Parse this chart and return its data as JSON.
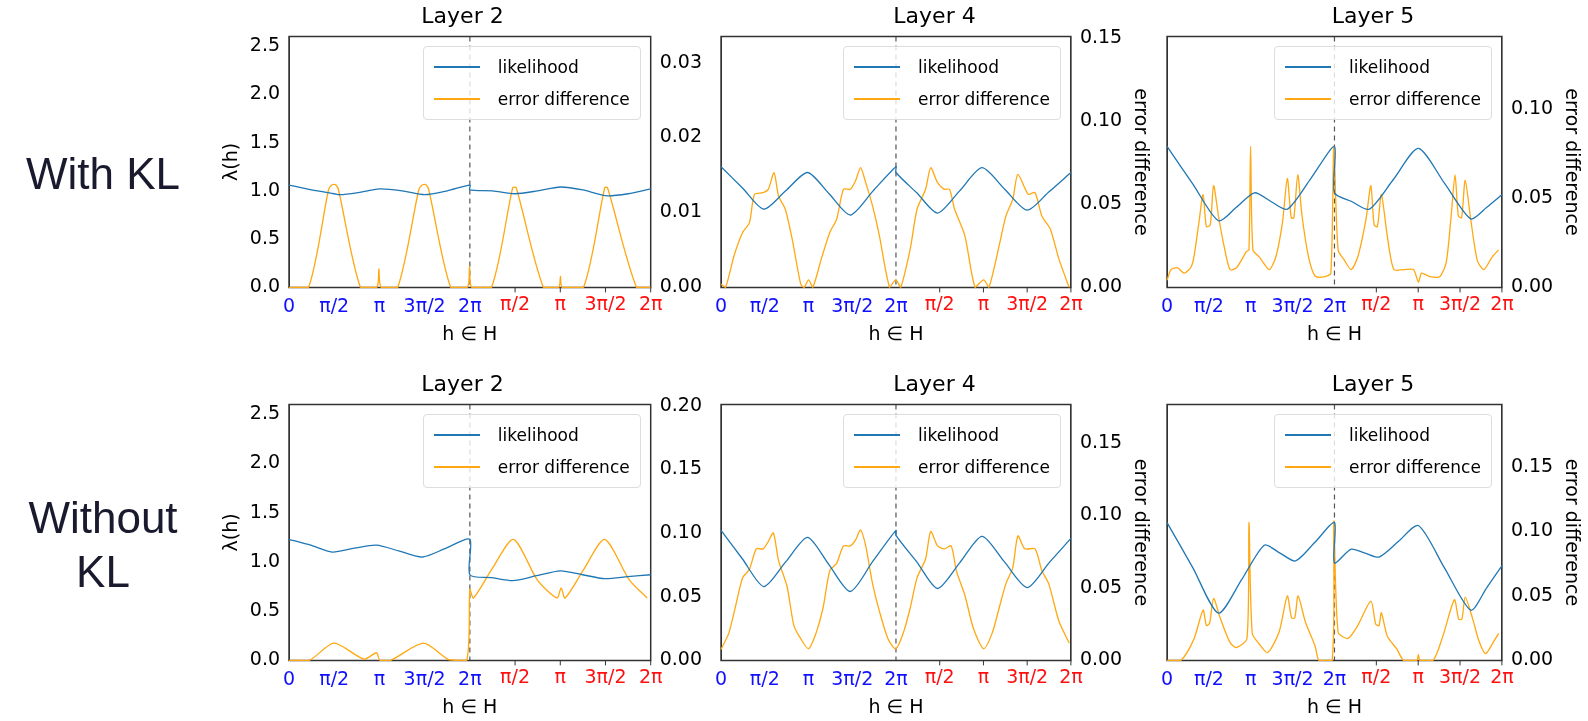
{
  "chart_data": [
    {
      "type": "line",
      "title": "Layer 2",
      "xlabel": "h ∈ H",
      "ylabel": "λ(h)",
      "annotations": [
        "With KL"
      ],
      "legend": "top right",
      "xlim": [
        0,
        12.566
      ],
      "xticks": [
        {
          "value": 0,
          "label": "0"
        },
        {
          "value": 1.571,
          "label": "π/2"
        },
        {
          "value": 3.142,
          "label": "π"
        },
        {
          "value": 4.712,
          "label": "3π/2"
        },
        {
          "value": 6.283,
          "label": "2π"
        }
      ],
      "x2lim": [
        -6.283,
        6.283
      ],
      "x2ticks": [
        {
          "value": 1.571,
          "label": "π/2"
        },
        {
          "value": 3.142,
          "label": "π"
        },
        {
          "value": 4.712,
          "label": "3π/2"
        },
        {
          "value": 6.283,
          "label": "2π"
        }
      ],
      "ylim": [
        0,
        2.6
      ],
      "yticks": [
        {
          "value": 0,
          "label": "0.0"
        },
        0.5,
        {
          "value": 1,
          "label": "1.0"
        },
        1.5,
        {
          "value": 2,
          "label": "2.0"
        },
        2.5
      ],
      "y2lim": [
        0,
        0.0335
      ],
      "y2ticks": [
        {
          "value": 0,
          "label": "0.00"
        },
        0.01,
        0.02,
        0.03
      ],
      "ref_lines": [
        {
          "axis": "x",
          "value": 6.283,
          "color": "#555555",
          "line_style": "dashed"
        }
      ],
      "series": [
        {
          "name": "likelihood",
          "color": "#1f77b4",
          "x": [
            0,
            0.785,
            1.571,
            1.767,
            2.356,
            3.142,
            3.927,
            4.712,
            5.498,
            6.283,
            6.283,
            7.069,
            7.854,
            8.639,
            9.425,
            10.21,
            10.996,
            11.781,
            12.566
          ],
          "values": [
            1.06,
            1.01,
            0.97,
            0.96,
            0.98,
            1.02,
            1.0,
            0.96,
            1.0,
            1.06,
            1.01,
            1.0,
            0.97,
            1.0,
            1.04,
            1.01,
            0.95,
            0.97,
            1.02
          ]
        },
        {
          "name": "error difference",
          "color": "#ffa812",
          "axis": "y2",
          "x": [
            0,
            0.676,
            1.377,
            1.5,
            1.623,
            1.72,
            2.484,
            3.05,
            3.123,
            3.197,
            3.775,
            4.513,
            4.636,
            4.759,
            4.857,
            5.619,
            6.197,
            6.271,
            6.345,
            7.033,
            7.771,
            7.894,
            8.841,
            9.37,
            9.431,
            9.493,
            10.23,
            10.968,
            11.067,
            12.075,
            12.566
          ],
          "values": [
            0,
            0,
            0.0131,
            0.0137,
            0.0137,
            0.013,
            0,
            0,
            0.0025,
            0,
            0,
            0.0131,
            0.0137,
            0.0137,
            0.013,
            0,
            0,
            0.0028,
            0,
            0,
            0.0133,
            0.0133,
            0,
            0,
            0.0015,
            0,
            0,
            0.0133,
            0.0133,
            0,
            0
          ]
        }
      ]
    },
    {
      "type": "line",
      "title": "Layer 4",
      "xlabel": "h ∈ H",
      "y2label": "error difference",
      "legend": "top right",
      "tick_labels": [
        "x",
        "y2"
      ],
      "xlim": [
        0,
        12.566
      ],
      "xticks": [
        {
          "value": 0,
          "label": "0"
        },
        {
          "value": 1.571,
          "label": "π/2"
        },
        {
          "value": 3.142,
          "label": "π"
        },
        {
          "value": 4.712,
          "label": "3π/2"
        },
        {
          "value": 6.283,
          "label": "2π"
        }
      ],
      "x2lim": [
        -6.283,
        6.283
      ],
      "x2ticks": [
        {
          "value": 1.571,
          "label": "π/2"
        },
        {
          "value": 3.142,
          "label": "π"
        },
        {
          "value": 4.712,
          "label": "3π/2"
        },
        {
          "value": 6.283,
          "label": "2π"
        }
      ],
      "ylim": [
        0,
        2.6
      ],
      "y2lim": [
        0,
        0.151
      ],
      "y2ticks": [
        {
          "value": 0,
          "label": "0.00"
        },
        0.05,
        {
          "value": 0.1,
          "label": "0.10"
        },
        0.15
      ],
      "ref_lines": [
        {
          "axis": "x",
          "value": 6.283,
          "color": "#555555",
          "line_style": "dashed"
        }
      ],
      "series": [
        {
          "name": "likelihood",
          "color": "#1f77b4",
          "x": [
            0,
            0.77,
            1.536,
            2.32,
            3.108,
            3.88,
            4.643,
            5.46,
            6.283,
            6.283,
            7.03,
            7.776,
            8.57,
            9.373,
            10.18,
            10.994,
            11.78,
            12.566
          ],
          "values": [
            1.25,
            1.03,
            0.81,
            1.0,
            1.19,
            0.97,
            0.75,
            1.0,
            1.25,
            1.19,
            0.98,
            0.77,
            1.0,
            1.24,
            1.02,
            0.8,
            0.99,
            1.19
          ]
        },
        {
          "name": "error difference",
          "color": "#ffa812",
          "axis": "y2",
          "x": [
            0,
            0.16,
            0.467,
            0.774,
            1.02,
            1.204,
            1.511,
            1.695,
            1.904,
            2.064,
            2.309,
            2.555,
            2.862,
            2.985,
            3.145,
            3.292,
            3.599,
            3.906,
            4.152,
            4.398,
            4.643,
            4.828,
            5.012,
            5.196,
            5.442,
            5.688,
            6.056,
            6.277,
            6.449,
            6.793,
            7.039,
            7.346,
            7.53,
            7.776,
            8.021,
            8.206,
            8.39,
            8.758,
            9.127,
            9.434,
            9.618,
            9.987,
            10.233,
            10.478,
            10.663,
            11.031,
            11.277,
            11.522,
            11.829,
            12.137,
            12.505
          ],
          "values": [
            0.002,
            0,
            0.019,
            0.033,
            0.039,
            0.056,
            0.057,
            0.059,
            0.069,
            0.055,
            0.047,
            0.029,
            0.002,
            0,
            0.0045,
            0,
            0.017,
            0.033,
            0.041,
            0.059,
            0.059,
            0.064,
            0.072,
            0.063,
            0.049,
            0.031,
            0,
            0.0045,
            0,
            0.023,
            0.047,
            0.059,
            0.072,
            0.063,
            0.059,
            0.059,
            0.047,
            0.031,
            0,
            0.0045,
            0,
            0.025,
            0.043,
            0.053,
            0.068,
            0.056,
            0.057,
            0.043,
            0.035,
            0.017,
            0
          ]
        }
      ]
    },
    {
      "type": "line",
      "title": "Layer 5",
      "xlabel": "h ∈ H",
      "y2label": "error difference",
      "legend": "top right",
      "tick_labels": [
        "x",
        "y2"
      ],
      "xlim": [
        0,
        12.566
      ],
      "xticks": [
        {
          "value": 0,
          "label": "0"
        },
        {
          "value": 1.571,
          "label": "π/2"
        },
        {
          "value": 3.142,
          "label": "π"
        },
        {
          "value": 4.712,
          "label": "3π/2"
        },
        {
          "value": 6.283,
          "label": "2π"
        }
      ],
      "x2lim": [
        -6.283,
        6.283
      ],
      "x2ticks": [
        {
          "value": 1.571,
          "label": "π/2"
        },
        {
          "value": 3.142,
          "label": "π"
        },
        {
          "value": 4.712,
          "label": "3π/2"
        },
        {
          "value": 6.283,
          "label": "2π"
        }
      ],
      "ylim": [
        0,
        2.6
      ],
      "y2lim": [
        0,
        0.1406
      ],
      "y2ticks": [
        {
          "value": 0,
          "label": "0.00"
        },
        0.05,
        {
          "value": 0.1,
          "label": "0.10"
        }
      ],
      "ref_lines": [
        {
          "axis": "x",
          "value": 6.283,
          "color": "#555555",
          "line_style": "dashed"
        }
      ],
      "series": [
        {
          "name": "likelihood",
          "color": "#1f77b4",
          "x": [
            0,
            0.97,
            1.93,
            2.6,
            3.283,
            3.9,
            4.513,
            5.4,
            6.283,
            6.283,
            6.93,
            7.587,
            8.5,
            9.431,
            10.41,
            11.398,
            12.0,
            12.566
          ],
          "values": [
            1.46,
            1.07,
            0.69,
            0.83,
            0.98,
            0.89,
            0.81,
            1.13,
            1.46,
            0.98,
            0.89,
            0.81,
            1.12,
            1.44,
            1.08,
            0.71,
            0.83,
            0.96
          ]
        },
        {
          "name": "error difference",
          "color": "#ffa812",
          "axis": "y2",
          "x": [
            0,
            0.148,
            0.394,
            0.639,
            0.885,
            1.008,
            1.193,
            1.353,
            1.476,
            1.623,
            1.746,
            1.93,
            2.115,
            2.361,
            2.607,
            2.976,
            3.074,
            3.135,
            3.222,
            3.467,
            3.836,
            4.082,
            4.328,
            4.513,
            4.66,
            4.759,
            4.906,
            5.066,
            5.312,
            5.558,
            5.927,
            6.148,
            6.259,
            6.419,
            6.665,
            6.91,
            7.156,
            7.464,
            7.648,
            7.771,
            7.894,
            8.042,
            8.263,
            8.509,
            8.878,
            9.247,
            9.431,
            9.554,
            9.861,
            10.23,
            10.476,
            10.661,
            10.808,
            10.931,
            11.054,
            11.189,
            11.398,
            11.644,
            11.89,
            12.198,
            12.443
          ],
          "values": [
            0.004,
            0.01,
            0.011,
            0.008,
            0.011,
            0.017,
            0.036,
            0.052,
            0.034,
            0.035,
            0.057,
            0.04,
            0.025,
            0.01,
            0.011,
            0.02,
            0.021,
            0.079,
            0.021,
            0.017,
            0.01,
            0.017,
            0.036,
            0.061,
            0.039,
            0.039,
            0.063,
            0.04,
            0.017,
            0.0064,
            0.006,
            0.008,
            0.079,
            0.021,
            0.015,
            0.01,
            0.017,
            0.038,
            0.057,
            0.035,
            0.034,
            0.052,
            0.029,
            0.01,
            0.01,
            0.01,
            0.003,
            0.008,
            0.006,
            0.006,
            0.014,
            0.04,
            0.063,
            0.04,
            0.039,
            0.06,
            0.038,
            0.015,
            0.01,
            0.017,
            0.021
          ]
        }
      ]
    },
    {
      "type": "line",
      "title": "Layer 2",
      "xlabel": "h ∈ H",
      "ylabel": "λ(h)",
      "annotations": [
        "Without KL"
      ],
      "legend": "top right",
      "xlim": [
        0,
        12.566
      ],
      "xticks": [
        {
          "value": 0,
          "label": "0"
        },
        {
          "value": 1.571,
          "label": "π/2"
        },
        {
          "value": 3.142,
          "label": "π"
        },
        {
          "value": 4.712,
          "label": "3π/2"
        },
        {
          "value": 6.283,
          "label": "2π"
        }
      ],
      "x2lim": [
        -6.283,
        6.283
      ],
      "x2ticks": [
        {
          "value": 1.571,
          "label": "π/2"
        },
        {
          "value": 3.142,
          "label": "π"
        },
        {
          "value": 4.712,
          "label": "3π/2"
        },
        {
          "value": 6.283,
          "label": "2π"
        }
      ],
      "ylim": [
        0,
        2.6
      ],
      "yticks": [
        {
          "value": 0,
          "label": "0.0"
        },
        0.5,
        {
          "value": 1,
          "label": "1.0"
        },
        1.5,
        {
          "value": 2,
          "label": "2.0"
        },
        2.5
      ],
      "y2lim": [
        0,
        0.201
      ],
      "y2ticks": [
        {
          "value": 0,
          "label": "0.00"
        },
        0.05,
        {
          "value": 0.1,
          "label": "0.10"
        },
        0.15,
        {
          "value": 0.2,
          "label": "0.20"
        }
      ],
      "ref_lines": [
        {
          "axis": "x",
          "value": 6.283,
          "color": "#555555",
          "line_style": "dashed"
        }
      ],
      "series": [
        {
          "name": "likelihood",
          "color": "#1f77b4",
          "x": [
            0,
            0.75,
            1.5,
            2.27,
            3.037,
            3.84,
            4.636,
            5.46,
            6.283,
            6.283,
            7.03,
            7.771,
            8.6,
            9.431,
            10.2,
            10.968,
            11.77,
            12.566
          ],
          "values": [
            1.23,
            1.17,
            1.1,
            1.14,
            1.17,
            1.11,
            1.05,
            1.14,
            1.23,
            0.87,
            0.84,
            0.81,
            0.86,
            0.91,
            0.87,
            0.83,
            0.85,
            0.87
          ]
        },
        {
          "name": "error difference",
          "color": "#ffa812",
          "axis": "y2",
          "x": [
            0,
            0.701,
            1.562,
            2.607,
            3.037,
            3.16,
            3.529,
            4.672,
            5.558,
            6.173,
            6.283,
            6.406,
            7.033,
            7.796,
            8.632,
            9.308,
            9.456,
            9.591,
            10.23,
            10.968,
            11.829,
            12.443
          ],
          "values": [
            0,
            0,
            0.0135,
            0.001,
            0.006,
            0,
            0,
            0.0135,
            0.0005,
            0,
            0.056,
            0.049,
            0.071,
            0.095,
            0.063,
            0.049,
            0.057,
            0.049,
            0.071,
            0.095,
            0.063,
            0.049
          ]
        }
      ]
    },
    {
      "type": "line",
      "title": "Layer 4",
      "xlabel": "h ∈ H",
      "y2label": "error difference",
      "legend": "top right",
      "tick_labels": [
        "x",
        "y2"
      ],
      "xlim": [
        0,
        12.566
      ],
      "xticks": [
        {
          "value": 0,
          "label": "0"
        },
        {
          "value": 1.571,
          "label": "π/2"
        },
        {
          "value": 3.142,
          "label": "π"
        },
        {
          "value": 4.712,
          "label": "3π/2"
        },
        {
          "value": 6.283,
          "label": "2π"
        }
      ],
      "x2lim": [
        -6.283,
        6.283
      ],
      "x2ticks": [
        {
          "value": 1.571,
          "label": "π/2"
        },
        {
          "value": 3.142,
          "label": "π"
        },
        {
          "value": 4.712,
          "label": "3π/2"
        },
        {
          "value": 6.283,
          "label": "2π"
        }
      ],
      "ylim": [
        0,
        2.6
      ],
      "y2lim": [
        0,
        0.1767
      ],
      "y2ticks": [
        {
          "value": 0,
          "label": "0.00"
        },
        0.05,
        {
          "value": 0.1,
          "label": "0.10"
        },
        0.15
      ],
      "ref_lines": [
        {
          "axis": "x",
          "value": 6.283,
          "color": "#555555",
          "line_style": "dashed"
        }
      ],
      "series": [
        {
          "name": "likelihood",
          "color": "#1f77b4",
          "x": [
            0,
            0.77,
            1.536,
            2.32,
            3.108,
            3.88,
            4.643,
            5.46,
            6.283,
            6.283,
            7.03,
            7.776,
            8.57,
            9.373,
            10.18,
            10.994,
            11.78,
            12.566
          ],
          "values": [
            1.32,
            1.03,
            0.75,
            1.0,
            1.25,
            0.97,
            0.7,
            1.01,
            1.32,
            1.27,
            1.0,
            0.73,
            0.99,
            1.26,
            1.0,
            0.74,
            0.99,
            1.24
          ]
        },
        {
          "name": "error difference",
          "color": "#ffa812",
          "axis": "y2",
          "x": [
            0,
            0.283,
            0.528,
            0.774,
            1.02,
            1.265,
            1.511,
            1.695,
            1.879,
            2.064,
            2.371,
            2.617,
            2.862,
            3.145,
            3.415,
            3.661,
            3.906,
            4.152,
            4.398,
            4.643,
            4.828,
            5.012,
            5.196,
            5.442,
            5.688,
            5.995,
            6.277,
            6.547,
            6.793,
            7.039,
            7.346,
            7.53,
            7.776,
            8.021,
            8.267,
            8.451,
            8.758,
            9.066,
            9.434,
            9.741,
            9.987,
            10.233,
            10.478,
            10.663,
            10.908,
            11.277,
            11.522,
            11.768,
            12.137,
            12.505
          ],
          "values": [
            0.0076,
            0.019,
            0.038,
            0.057,
            0.063,
            0.077,
            0.077,
            0.082,
            0.088,
            0.069,
            0.051,
            0.024,
            0.015,
            0.008,
            0.019,
            0.036,
            0.062,
            0.067,
            0.079,
            0.079,
            0.083,
            0.09,
            0.079,
            0.053,
            0.034,
            0.015,
            0.008,
            0.019,
            0.036,
            0.057,
            0.07,
            0.089,
            0.079,
            0.077,
            0.079,
            0.062,
            0.045,
            0.022,
            0.008,
            0.019,
            0.036,
            0.053,
            0.064,
            0.086,
            0.077,
            0.077,
            0.062,
            0.053,
            0.027,
            0.012
          ]
        }
      ]
    },
    {
      "type": "line",
      "title": "Layer 5",
      "xlabel": "h ∈ H",
      "y2label": "error difference",
      "legend": "top right",
      "tick_labels": [
        "x",
        "y2"
      ],
      "xlim": [
        0,
        12.566
      ],
      "xticks": [
        {
          "value": 0,
          "label": "0"
        },
        {
          "value": 1.571,
          "label": "π/2"
        },
        {
          "value": 3.142,
          "label": "π"
        },
        {
          "value": 4.712,
          "label": "3π/2"
        },
        {
          "value": 6.283,
          "label": "2π"
        }
      ],
      "x2lim": [
        -6.283,
        6.283
      ],
      "x2ticks": [
        {
          "value": 1.571,
          "label": "π/2"
        },
        {
          "value": 3.142,
          "label": "π"
        },
        {
          "value": 4.712,
          "label": "3π/2"
        },
        {
          "value": 6.283,
          "label": "2π"
        }
      ],
      "ylim": [
        0,
        2.6
      ],
      "y2lim": [
        0,
        0.1985
      ],
      "y2ticks": [
        {
          "value": 0,
          "label": "0.00"
        },
        0.05,
        {
          "value": 0.1,
          "label": "0.10"
        },
        0.15
      ],
      "ref_lines": [
        {
          "axis": "x",
          "value": 6.283,
          "color": "#555555",
          "line_style": "dashed"
        }
      ],
      "series": [
        {
          "name": "likelihood",
          "color": "#1f77b4",
          "x": [
            0,
            0.97,
            1.93,
            2.8,
            3.652,
            4.24,
            4.82,
            5.55,
            6.283,
            6.283,
            6.91,
            7.43,
            7.955,
            8.69,
            9.431,
            10.41,
            11.398,
            12.0,
            12.566
          ],
          "values": [
            1.4,
            0.94,
            0.48,
            0.82,
            1.17,
            1.09,
            1.01,
            1.2,
            1.4,
            0.99,
            1.13,
            1.09,
            1.05,
            1.21,
            1.37,
            0.94,
            0.51,
            0.74,
            0.96
          ]
        },
        {
          "name": "error difference",
          "color": "#ffa812",
          "axis": "y2",
          "x": [
            0,
            0.516,
            1.008,
            1.353,
            1.476,
            1.599,
            1.746,
            1.992,
            2.361,
            2.607,
            3.0,
            3.074,
            3.197,
            3.467,
            3.775,
            4.205,
            4.513,
            4.672,
            4.795,
            4.918,
            5.189,
            5.558,
            5.705,
            6.197,
            6.259,
            6.419,
            6.787,
            7.156,
            7.648,
            7.832,
            7.955,
            8.042,
            8.263,
            8.632,
            8.878,
            9.37,
            9.431,
            9.493,
            9.984,
            10.353,
            10.784,
            10.943,
            11.066,
            11.189,
            11.459,
            11.706,
            11.952,
            12.198,
            12.443
          ],
          "values": [
            0,
            0,
            0.0165,
            0.039,
            0.027,
            0.029,
            0.048,
            0.033,
            0.014,
            0.01,
            0.017,
            0.107,
            0.021,
            0.0125,
            0.006,
            0.022,
            0.05,
            0.033,
            0.033,
            0.05,
            0.03,
            0.011,
            0,
            0,
            0.108,
            0.022,
            0.017,
            0.027,
            0.046,
            0.028,
            0.027,
            0.037,
            0.019,
            0.0085,
            0,
            0,
            0.0045,
            0,
            0,
            0.019,
            0.047,
            0.032,
            0.032,
            0.049,
            0.033,
            0.015,
            0.0053,
            0.0125,
            0.021
          ]
        }
      ]
    }
  ]
}
